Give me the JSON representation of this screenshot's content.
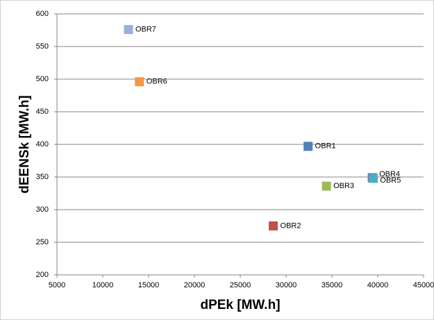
{
  "chart_data": {
    "type": "scatter",
    "x_label": "dPEk [MW.h]",
    "y_label": "dEENSk [MW.h]",
    "points": [
      {
        "label": "OBR1",
        "x": 32400,
        "y": 397,
        "color": "#4f81bd"
      },
      {
        "label": "OBR2",
        "x": 28600,
        "y": 275,
        "color": "#c0504d"
      },
      {
        "label": "OBR3",
        "x": 34400,
        "y": 336,
        "color": "#9bbb59"
      },
      {
        "label": "OBR4",
        "x": 39400,
        "y": 349,
        "color": "#8064a2"
      },
      {
        "label": "OBR5",
        "x": 39500,
        "y": 348,
        "color": "#4bacc6"
      },
      {
        "label": "OBR6",
        "x": 14000,
        "y": 496,
        "color": "#f79646"
      },
      {
        "label": "OBR7",
        "x": 12800,
        "y": 576,
        "color": "#95b3d7"
      }
    ],
    "xlim": [
      5000,
      45000
    ],
    "xticks": [
      5000,
      10000,
      15000,
      20000,
      25000,
      30000,
      35000,
      40000,
      45000
    ],
    "ylim": [
      200,
      600
    ],
    "yticks": [
      200,
      250,
      300,
      350,
      400,
      450,
      500,
      550,
      600
    ],
    "grid": true
  }
}
